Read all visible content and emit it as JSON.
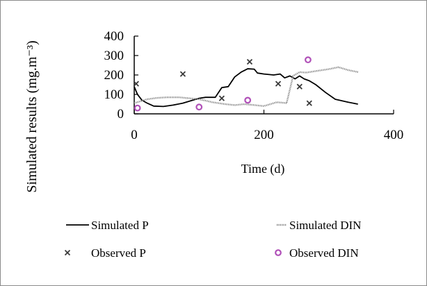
{
  "chart_data": {
    "type": "line",
    "title": "",
    "xlabel": "Time (d)",
    "ylabel": "Simulated results (mg.m⁻³)",
    "xlim": [
      0,
      400
    ],
    "ylim": [
      0,
      400
    ],
    "x_ticks": [
      "0",
      "200",
      "400"
    ],
    "y_ticks": [
      "0",
      "100",
      "200",
      "300",
      "400"
    ],
    "grid": false,
    "legend_position": "bottom",
    "series": [
      {
        "name": "Simulated P",
        "kind": "line",
        "style": "solid",
        "color": "#000000",
        "x": [
          0,
          5,
          12,
          20,
          30,
          45,
          60,
          75,
          90,
          100,
          110,
          125,
          135,
          145,
          155,
          165,
          175,
          185,
          190,
          200,
          215,
          225,
          232,
          240,
          248,
          255,
          262,
          270,
          280,
          295,
          310,
          330,
          345
        ],
        "y": [
          140,
          100,
          70,
          55,
          40,
          38,
          45,
          55,
          70,
          80,
          85,
          85,
          135,
          140,
          190,
          215,
          232,
          230,
          210,
          205,
          200,
          205,
          185,
          195,
          180,
          195,
          180,
          170,
          150,
          110,
          75,
          60,
          50
        ]
      },
      {
        "name": "Simulated DIN",
        "kind": "line",
        "style": "dotted",
        "color": "#808080",
        "x": [
          0,
          10,
          20,
          35,
          50,
          70,
          85,
          100,
          110,
          120,
          130,
          140,
          155,
          170,
          185,
          200,
          220,
          235,
          245,
          255,
          265,
          280,
          300,
          315,
          330,
          345
        ],
        "y": [
          55,
          65,
          75,
          82,
          85,
          85,
          80,
          75,
          68,
          60,
          55,
          50,
          45,
          50,
          45,
          40,
          60,
          55,
          195,
          215,
          212,
          220,
          230,
          240,
          225,
          215
        ]
      },
      {
        "name": "Observed P",
        "kind": "scatter",
        "marker": "x",
        "color": "#3a3a3a",
        "x": [
          3,
          75,
          135,
          178,
          222,
          255,
          270
        ],
        "y": [
          155,
          205,
          80,
          268,
          155,
          140,
          55
        ]
      },
      {
        "name": "Observed DIN",
        "kind": "scatter",
        "marker": "circle",
        "color": "#b050b8",
        "x": [
          5,
          100,
          175,
          268
        ],
        "y": [
          30,
          35,
          70,
          278
        ]
      }
    ]
  }
}
